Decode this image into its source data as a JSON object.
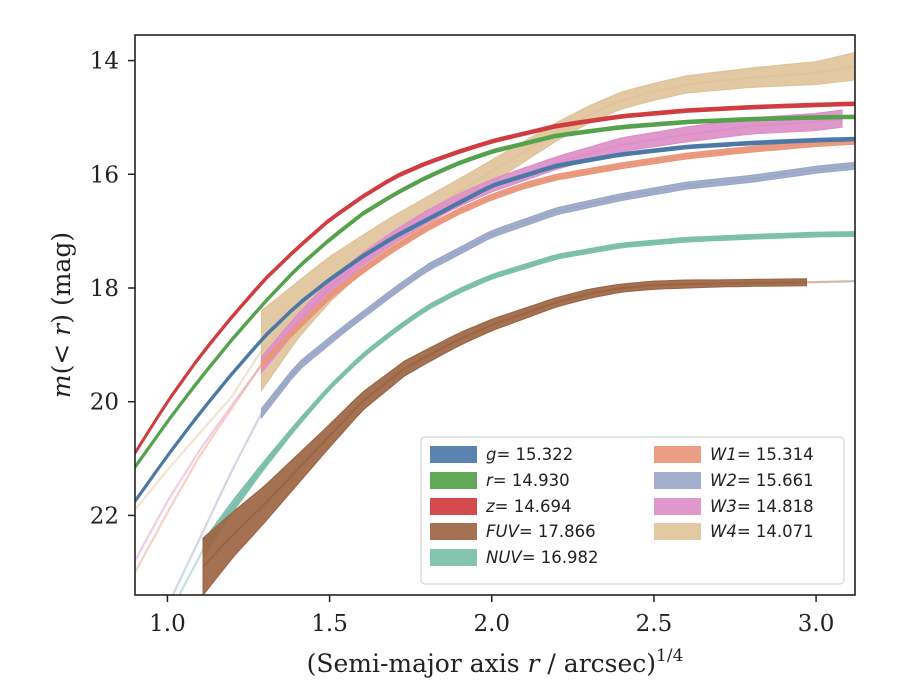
{
  "chart_data": {
    "type": "area",
    "xlabel": "(Semi-major axis r / arcsec)^1/4",
    "ylabel": "m(< r) (mag)",
    "xlim": [
      0.9,
      3.12
    ],
    "ylim": [
      23.4,
      13.55
    ],
    "y_inverted": true,
    "xticks": [
      "1.0",
      "1.5",
      "2.0",
      "2.5",
      "3.0"
    ],
    "yticks": [
      "14",
      "16",
      "18",
      "20",
      "22"
    ],
    "grid": false,
    "legend_position": "lower-right",
    "series": [
      {
        "name": "g = 15.322",
        "label_italic": "g",
        "label_value": "= 15.322",
        "color": "#4c78a8",
        "fit_start": 0.9,
        "x_start": 0.9,
        "x_end": 3.12,
        "x": [
          0.9,
          1.0,
          1.1,
          1.2,
          1.3,
          1.4,
          1.5,
          1.6,
          1.7,
          1.8,
          1.9,
          2.0,
          2.2,
          2.4,
          2.6,
          2.8,
          3.0,
          3.12
        ],
        "y": [
          21.75,
          20.95,
          20.2,
          19.5,
          18.85,
          18.3,
          17.85,
          17.45,
          17.1,
          16.8,
          16.5,
          16.2,
          15.85,
          15.65,
          15.52,
          15.45,
          15.4,
          15.38
        ],
        "half_width": [
          0.03,
          0.03,
          0.03,
          0.03,
          0.03,
          0.03,
          0.03,
          0.03,
          0.03,
          0.03,
          0.03,
          0.03,
          0.03,
          0.03,
          0.03,
          0.03,
          0.03,
          0.03
        ]
      },
      {
        "name": "r = 14.930",
        "label_italic": "r",
        "label_value": "= 14.930",
        "color": "#54a24b",
        "fit_start": 0.9,
        "x_start": 0.9,
        "x_end": 3.12,
        "x": [
          0.9,
          1.0,
          1.1,
          1.2,
          1.3,
          1.4,
          1.5,
          1.6,
          1.7,
          1.8,
          1.9,
          2.0,
          2.2,
          2.4,
          2.6,
          2.8,
          3.0,
          3.12
        ],
        "y": [
          21.15,
          20.35,
          19.6,
          18.9,
          18.25,
          17.65,
          17.15,
          16.7,
          16.35,
          16.05,
          15.8,
          15.6,
          15.32,
          15.17,
          15.08,
          15.03,
          15.0,
          14.99
        ],
        "half_width": [
          0.03,
          0.03,
          0.03,
          0.03,
          0.03,
          0.03,
          0.03,
          0.03,
          0.03,
          0.03,
          0.03,
          0.03,
          0.03,
          0.03,
          0.03,
          0.03,
          0.03,
          0.03
        ]
      },
      {
        "name": "z = 14.694",
        "label_italic": "z",
        "label_value": "= 14.694",
        "color": "#d03c3f",
        "fit_start": 0.9,
        "x_start": 0.9,
        "x_end": 3.12,
        "x": [
          0.9,
          1.0,
          1.1,
          1.2,
          1.3,
          1.4,
          1.5,
          1.6,
          1.7,
          1.8,
          1.9,
          2.0,
          2.2,
          2.4,
          2.6,
          2.8,
          3.0,
          3.12
        ],
        "y": [
          20.9,
          20.0,
          19.2,
          18.5,
          17.85,
          17.3,
          16.8,
          16.4,
          16.05,
          15.8,
          15.6,
          15.42,
          15.15,
          14.98,
          14.88,
          14.82,
          14.78,
          14.76
        ],
        "half_width": [
          0.03,
          0.03,
          0.03,
          0.03,
          0.03,
          0.03,
          0.03,
          0.03,
          0.03,
          0.03,
          0.03,
          0.03,
          0.03,
          0.03,
          0.03,
          0.03,
          0.03,
          0.03
        ]
      },
      {
        "name": "FUV = 17.866",
        "label_italic": "FUV",
        "label_value": "= 17.866",
        "color": "#9c6644",
        "fit_start": 2.97,
        "x_start": 1.11,
        "x_end": 2.97,
        "x": [
          1.11,
          1.2,
          1.3,
          1.4,
          1.5,
          1.6,
          1.73,
          1.8,
          1.9,
          2.0,
          2.1,
          2.2,
          2.3,
          2.4,
          2.5,
          2.6,
          2.7,
          2.8,
          2.97,
          3.12
        ],
        "y": [
          22.9,
          22.35,
          21.8,
          21.2,
          20.6,
          20.0,
          19.42,
          19.2,
          18.9,
          18.65,
          18.45,
          18.25,
          18.1,
          18.0,
          17.95,
          17.93,
          17.92,
          17.91,
          17.9,
          17.88
        ],
        "half_width": [
          0.5,
          0.4,
          0.32,
          0.26,
          0.2,
          0.16,
          0.13,
          0.12,
          0.11,
          0.1,
          0.09,
          0.08,
          0.08,
          0.07,
          0.07,
          0.07,
          0.06,
          0.06,
          0.06,
          0.03
        ]
      },
      {
        "name": "NUV = 16.982",
        "label_italic": "NUV",
        "label_value": "= 16.982",
        "color": "#7bbfa9",
        "fit_start": 0.9,
        "x_start": 1.11,
        "x_end": 3.12,
        "x": [
          0.9,
          1.0,
          1.11,
          1.2,
          1.3,
          1.4,
          1.5,
          1.6,
          1.7,
          1.8,
          1.9,
          2.0,
          2.2,
          2.4,
          2.6,
          2.8,
          3.0,
          3.12
        ],
        "y": [
          24.8,
          23.8,
          22.6,
          21.85,
          21.1,
          20.4,
          19.75,
          19.2,
          18.75,
          18.35,
          18.05,
          17.8,
          17.45,
          17.25,
          17.15,
          17.1,
          17.06,
          17.05
        ],
        "half_width": [
          0.03,
          0.03,
          0.15,
          0.1,
          0.07,
          0.05,
          0.04,
          0.04,
          0.04,
          0.04,
          0.04,
          0.04,
          0.04,
          0.04,
          0.04,
          0.04,
          0.04,
          0.04
        ]
      },
      {
        "name": "W1 = 15.314",
        "label_italic": "W1",
        "label_value": "= 15.314",
        "color": "#e9967a",
        "fit_start": 0.9,
        "x_start": 1.29,
        "x_end": 3.12,
        "x": [
          0.9,
          1.0,
          1.1,
          1.2,
          1.29,
          1.4,
          1.5,
          1.6,
          1.7,
          1.8,
          1.9,
          2.0,
          2.1,
          2.2,
          2.4,
          2.6,
          2.8,
          3.0,
          3.12
        ],
        "y": [
          23.0,
          21.95,
          20.95,
          20.1,
          19.35,
          18.7,
          18.15,
          17.7,
          17.3,
          16.95,
          16.65,
          16.4,
          16.2,
          16.05,
          15.85,
          15.68,
          15.56,
          15.46,
          15.42
        ],
        "half_width": [
          0.03,
          0.03,
          0.03,
          0.03,
          0.05,
          0.05,
          0.05,
          0.05,
          0.05,
          0.05,
          0.05,
          0.05,
          0.05,
          0.05,
          0.05,
          0.05,
          0.05,
          0.05,
          0.05
        ]
      },
      {
        "name": "W2 = 15.661",
        "label_italic": "W2",
        "label_value": "= 15.661",
        "color": "#9aa7c7",
        "fit_start": 0.9,
        "x_start": 1.29,
        "x_end": 3.12,
        "x": [
          0.9,
          1.0,
          1.1,
          1.2,
          1.29,
          1.4,
          1.55,
          1.7,
          1.8,
          1.9,
          2.0,
          2.1,
          2.2,
          2.4,
          2.6,
          2.8,
          3.0,
          3.12
        ],
        "y": [
          24.9,
          23.6,
          22.4,
          21.2,
          20.2,
          19.4,
          18.7,
          18.05,
          17.65,
          17.35,
          17.05,
          16.85,
          16.65,
          16.4,
          16.2,
          16.08,
          15.92,
          15.85
        ],
        "half_width": [
          0.03,
          0.03,
          0.03,
          0.03,
          0.08,
          0.07,
          0.06,
          0.06,
          0.06,
          0.06,
          0.06,
          0.06,
          0.06,
          0.06,
          0.06,
          0.06,
          0.06,
          0.06
        ]
      },
      {
        "name": "W3 = 14.818",
        "label_italic": "W3",
        "label_value": "= 14.818",
        "color": "#dd8fc8",
        "fit_start": 0.9,
        "x_start": 1.29,
        "x_end": 3.08,
        "x": [
          0.9,
          1.0,
          1.1,
          1.2,
          1.29,
          1.4,
          1.5,
          1.6,
          1.7,
          1.8,
          1.9,
          2.0,
          2.2,
          2.4,
          2.6,
          2.8,
          3.0,
          3.08
        ],
        "y": [
          22.8,
          21.75,
          20.85,
          20.05,
          19.35,
          18.6,
          18.0,
          17.5,
          17.1,
          16.75,
          16.45,
          16.2,
          15.8,
          15.48,
          15.3,
          15.15,
          15.08,
          15.02
        ],
        "half_width": [
          0.03,
          0.03,
          0.03,
          0.03,
          0.14,
          0.13,
          0.12,
          0.11,
          0.11,
          0.11,
          0.11,
          0.11,
          0.11,
          0.12,
          0.13,
          0.14,
          0.15,
          0.15
        ]
      },
      {
        "name": "W4 = 14.071",
        "label_italic": "W4",
        "label_value": "= 14.071",
        "color": "#dfc39b",
        "fit_start": 0.9,
        "x_start": 1.29,
        "x_end": 3.12,
        "x": [
          0.9,
          1.0,
          1.1,
          1.2,
          1.29,
          1.4,
          1.5,
          1.6,
          1.7,
          1.8,
          1.9,
          2.0,
          2.1,
          2.2,
          2.3,
          2.4,
          2.5,
          2.6,
          2.8,
          3.0,
          3.12
        ],
        "y": [
          21.9,
          21.2,
          20.55,
          19.9,
          19.1,
          18.4,
          17.85,
          17.4,
          17.0,
          16.65,
          16.3,
          15.95,
          15.6,
          15.25,
          14.95,
          14.7,
          14.55,
          14.42,
          14.3,
          14.22,
          14.1
        ],
        "half_width": [
          0.03,
          0.03,
          0.03,
          0.03,
          0.7,
          0.5,
          0.4,
          0.32,
          0.28,
          0.25,
          0.22,
          0.2,
          0.18,
          0.16,
          0.15,
          0.15,
          0.15,
          0.15,
          0.17,
          0.2,
          0.24
        ]
      }
    ]
  }
}
